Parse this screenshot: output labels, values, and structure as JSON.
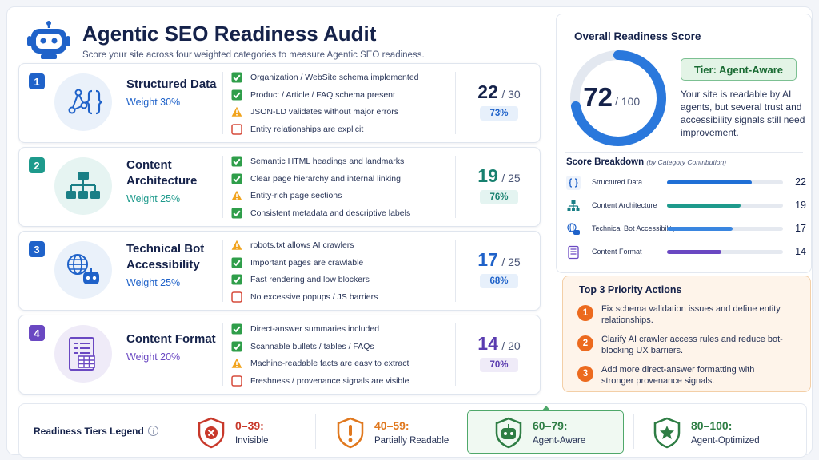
{
  "header": {
    "title": "Agentic SEO Readiness Audit",
    "subtitle": "Score your site across four weighted categories to measure Agentic SEO readiness."
  },
  "categories": [
    {
      "num": "1",
      "name": "Structured Data",
      "weight": "Weight 30%",
      "score": "22",
      "max": "/ 30",
      "percent": "73%",
      "color": "#1f62c9",
      "checks": [
        {
          "status": "pass",
          "text": "Organization / WebSite schema implemented"
        },
        {
          "status": "pass",
          "text": "Product / Article / FAQ schema present"
        },
        {
          "status": "warn",
          "text": "JSON-LD validates without major errors"
        },
        {
          "status": "fail",
          "text": "Entity relationships are explicit"
        }
      ]
    },
    {
      "num": "2",
      "name": "Content Architecture",
      "weight": "Weight 25%",
      "score": "19",
      "max": "/ 25",
      "percent": "76%",
      "color": "#1e9a8c",
      "checks": [
        {
          "status": "pass",
          "text": "Semantic HTML headings and landmarks"
        },
        {
          "status": "pass",
          "text": "Clear page hierarchy and internal linking"
        },
        {
          "status": "warn",
          "text": "Entity-rich page sections"
        },
        {
          "status": "pass",
          "text": "Consistent metadata and descriptive labels"
        }
      ]
    },
    {
      "num": "3",
      "name": "Technical Bot Accessibility",
      "weight": "Weight 25%",
      "score": "17",
      "max": "/ 25",
      "percent": "68%",
      "color": "#1f62c9",
      "checks": [
        {
          "status": "warn",
          "text": "robots.txt allows AI crawlers"
        },
        {
          "status": "pass",
          "text": "Important pages are crawlable"
        },
        {
          "status": "pass",
          "text": "Fast rendering and low blockers"
        },
        {
          "status": "fail",
          "text": "No excessive popups / JS barriers"
        }
      ]
    },
    {
      "num": "4",
      "name": "Content Format",
      "weight": "Weight 20%",
      "score": "14",
      "max": "/ 20",
      "percent": "70%",
      "color": "#6a48c2",
      "checks": [
        {
          "status": "pass",
          "text": "Direct-answer summaries included"
        },
        {
          "status": "pass",
          "text": "Scannable bullets / tables / FAQs"
        },
        {
          "status": "warn",
          "text": "Machine-readable facts are easy to extract"
        },
        {
          "status": "fail",
          "text": "Freshness / provenance signals are visible"
        }
      ]
    }
  ],
  "overall": {
    "title": "Overall Readiness Score",
    "score": "72",
    "max": "/ 100",
    "fraction": 0.72,
    "tier_label": "Tier: Agent-Aware",
    "description": "Your site is readable by AI agents, but several trust and accessibility signals still need improvement."
  },
  "breakdown": {
    "title": "Score Breakdown",
    "subtitle": "(by Category Contribution)",
    "max": 30,
    "rows": [
      {
        "label": "Structured Data",
        "value": "22",
        "amount": 22,
        "color": "#1f6fd6",
        "icon": "braces-icon"
      },
      {
        "label": "Content Architecture",
        "value": "19",
        "amount": 19,
        "color": "#1e9a8c",
        "icon": "hierarchy-icon"
      },
      {
        "label": "Technical Bot Accessibility",
        "value": "17",
        "amount": 17,
        "color": "#3a86e0",
        "icon": "globe-bot-icon"
      },
      {
        "label": "Content Format",
        "value": "14",
        "amount": 14,
        "color": "#6a48c2",
        "icon": "document-icon"
      }
    ]
  },
  "actions": {
    "title": "Top 3 Priority Actions",
    "items": [
      {
        "num": "1",
        "text": "Fix schema validation issues and define entity relationships."
      },
      {
        "num": "2",
        "text": "Clarify AI crawler access rules and reduce bot-blocking UX barriers."
      },
      {
        "num": "3",
        "text": "Add more direct-answer formatting with stronger provenance signals."
      }
    ]
  },
  "legend": {
    "title": "Readiness Tiers Legend",
    "info": "i",
    "tiers": [
      {
        "range": "0–39:",
        "label": "Invisible",
        "color": "#c8392b"
      },
      {
        "range": "40–59:",
        "label": "Partially Readable",
        "color": "#e0781e"
      },
      {
        "range": "60–79:",
        "label": "Agent-Aware",
        "color": "#2e7d44"
      },
      {
        "range": "80–100:",
        "label": "Agent-Optimized",
        "color": "#2e7d44"
      }
    ]
  }
}
